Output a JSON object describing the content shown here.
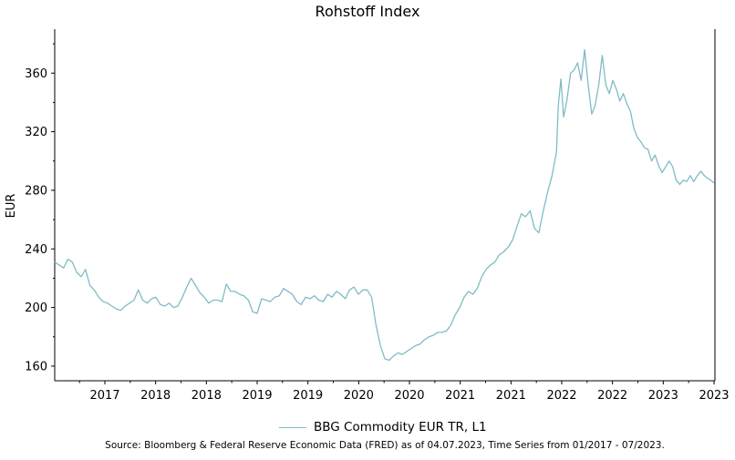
{
  "chart_data": {
    "type": "line",
    "title": "Rohstoff Index",
    "xlabel": "",
    "ylabel": "EUR",
    "x_tick_labels": [
      "2017",
      "2018",
      "2018",
      "2019",
      "2019",
      "2020",
      "2020",
      "2021",
      "2021",
      "2022",
      "2022",
      "2023",
      "2023"
    ],
    "y_ticks": [
      160,
      200,
      240,
      280,
      320,
      360
    ],
    "ylim": [
      150,
      390
    ],
    "xlim": [
      2016.0,
      2023.5
    ],
    "grid": false,
    "legend_position": "bottom-center",
    "line_color": "#7fbcc6",
    "series": [
      {
        "name": "BBG Commodity EUR TR, L1",
        "points": [
          [
            2016.0,
            231
          ],
          [
            2016.05,
            229
          ],
          [
            2016.1,
            227
          ],
          [
            2016.15,
            233
          ],
          [
            2016.2,
            231
          ],
          [
            2016.25,
            224
          ],
          [
            2016.3,
            221
          ],
          [
            2016.35,
            226
          ],
          [
            2016.4,
            215
          ],
          [
            2016.45,
            212
          ],
          [
            2016.5,
            207
          ],
          [
            2016.55,
            204
          ],
          [
            2016.6,
            203
          ],
          [
            2016.65,
            201
          ],
          [
            2016.7,
            199
          ],
          [
            2016.75,
            198
          ],
          [
            2016.8,
            201
          ],
          [
            2016.85,
            203
          ],
          [
            2016.9,
            205
          ],
          [
            2016.95,
            212
          ],
          [
            2017.0,
            205
          ],
          [
            2017.05,
            203
          ],
          [
            2017.1,
            206
          ],
          [
            2017.15,
            207
          ],
          [
            2017.2,
            202
          ],
          [
            2017.25,
            201
          ],
          [
            2017.3,
            203
          ],
          [
            2017.35,
            200
          ],
          [
            2017.4,
            201
          ],
          [
            2017.45,
            207
          ],
          [
            2017.5,
            214
          ],
          [
            2017.55,
            220
          ],
          [
            2017.6,
            215
          ],
          [
            2017.65,
            210
          ],
          [
            2017.7,
            207
          ],
          [
            2017.75,
            203
          ],
          [
            2017.8,
            205
          ],
          [
            2017.85,
            205
          ],
          [
            2017.9,
            204
          ],
          [
            2017.95,
            216
          ],
          [
            2018.0,
            211
          ],
          [
            2018.05,
            211
          ],
          [
            2018.1,
            209
          ],
          [
            2018.15,
            208
          ],
          [
            2018.2,
            205
          ],
          [
            2018.25,
            197
          ],
          [
            2018.3,
            196
          ],
          [
            2018.35,
            206
          ],
          [
            2018.4,
            205
          ],
          [
            2018.45,
            204
          ],
          [
            2018.5,
            207
          ],
          [
            2018.55,
            208
          ],
          [
            2018.6,
            213
          ],
          [
            2018.65,
            211
          ],
          [
            2018.7,
            209
          ],
          [
            2018.75,
            204
          ],
          [
            2018.8,
            202
          ],
          [
            2018.85,
            207
          ],
          [
            2018.9,
            206
          ],
          [
            2018.95,
            208
          ],
          [
            2019.0,
            205
          ],
          [
            2019.05,
            204
          ],
          [
            2019.1,
            209
          ],
          [
            2019.15,
            207
          ],
          [
            2019.2,
            211
          ],
          [
            2019.25,
            209
          ],
          [
            2019.3,
            206
          ],
          [
            2019.35,
            212
          ],
          [
            2019.4,
            214
          ],
          [
            2019.45,
            209
          ],
          [
            2019.5,
            212
          ],
          [
            2019.55,
            212
          ],
          [
            2019.6,
            207
          ],
          [
            2019.65,
            188
          ],
          [
            2019.7,
            174
          ],
          [
            2019.75,
            165
          ],
          [
            2019.8,
            164
          ],
          [
            2019.85,
            167
          ],
          [
            2019.9,
            169
          ],
          [
            2019.95,
            168
          ],
          [
            2020.0,
            170
          ],
          [
            2020.05,
            172
          ],
          [
            2020.1,
            174
          ],
          [
            2020.15,
            175
          ],
          [
            2020.2,
            178
          ],
          [
            2020.25,
            180
          ],
          [
            2020.3,
            181
          ],
          [
            2020.35,
            183
          ],
          [
            2020.4,
            183
          ],
          [
            2020.45,
            184
          ],
          [
            2020.5,
            188
          ],
          [
            2020.55,
            195
          ],
          [
            2020.6,
            200
          ],
          [
            2020.65,
            207
          ],
          [
            2020.7,
            211
          ],
          [
            2020.75,
            209
          ],
          [
            2020.8,
            213
          ],
          [
            2020.85,
            221
          ],
          [
            2020.9,
            226
          ],
          [
            2020.95,
            229
          ],
          [
            2021.0,
            231
          ],
          [
            2021.05,
            236
          ],
          [
            2021.1,
            238
          ],
          [
            2021.15,
            241
          ],
          [
            2021.2,
            246
          ],
          [
            2021.25,
            255
          ],
          [
            2021.3,
            264
          ],
          [
            2021.35,
            262
          ],
          [
            2021.4,
            266
          ],
          [
            2021.45,
            254
          ],
          [
            2021.5,
            251
          ],
          [
            2021.55,
            266
          ],
          [
            2021.6,
            279
          ],
          [
            2021.65,
            290
          ],
          [
            2021.7,
            306
          ],
          [
            2021.72,
            338
          ],
          [
            2021.75,
            356
          ],
          [
            2021.78,
            330
          ],
          [
            2021.82,
            342
          ],
          [
            2021.86,
            360
          ],
          [
            2021.9,
            362
          ],
          [
            2021.94,
            367
          ],
          [
            2021.98,
            355
          ],
          [
            2022.02,
            376
          ],
          [
            2022.06,
            352
          ],
          [
            2022.1,
            332
          ],
          [
            2022.14,
            338
          ],
          [
            2022.18,
            352
          ],
          [
            2022.22,
            372
          ],
          [
            2022.26,
            352
          ],
          [
            2022.3,
            346
          ],
          [
            2022.34,
            355
          ],
          [
            2022.38,
            349
          ],
          [
            2022.42,
            341
          ],
          [
            2022.46,
            346
          ],
          [
            2022.5,
            339
          ],
          [
            2022.54,
            334
          ],
          [
            2022.58,
            322
          ],
          [
            2022.62,
            316
          ],
          [
            2022.66,
            313
          ],
          [
            2022.7,
            309
          ],
          [
            2022.74,
            308
          ],
          [
            2022.78,
            300
          ],
          [
            2022.82,
            304
          ],
          [
            2022.86,
            297
          ],
          [
            2022.9,
            292
          ],
          [
            2022.94,
            296
          ],
          [
            2022.98,
            300
          ],
          [
            2023.02,
            296
          ],
          [
            2023.06,
            287
          ],
          [
            2023.1,
            284
          ],
          [
            2023.14,
            287
          ],
          [
            2023.18,
            286
          ],
          [
            2023.22,
            290
          ],
          [
            2023.26,
            286
          ],
          [
            2023.3,
            290
          ],
          [
            2023.34,
            293
          ],
          [
            2023.38,
            290
          ],
          [
            2023.42,
            288
          ],
          [
            2023.45,
            287
          ],
          [
            2023.49,
            285
          ]
        ]
      }
    ]
  },
  "source_text": "Source: Bloomberg & Federal Reserve Economic Data (FRED) as of 04.07.2023, Time Series from 01/2017 - 07/2023."
}
